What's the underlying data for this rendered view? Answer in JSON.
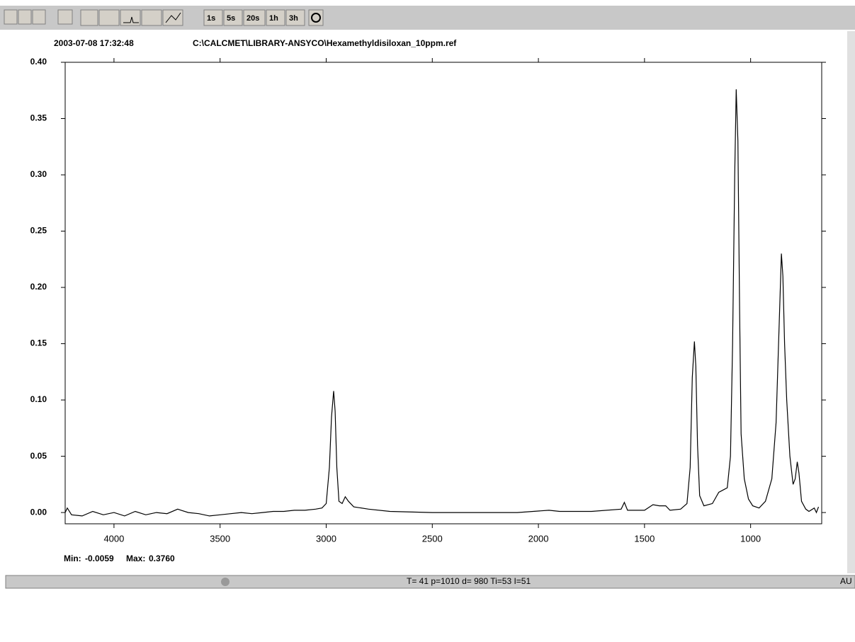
{
  "toolbar": {
    "buttons": [
      "1s",
      "5s",
      "20s",
      "1h",
      "3h"
    ]
  },
  "header": {
    "timestamp": "2003-07-08 17:32:48",
    "file": "C:\\CALCMET\\LIBRARY-ANSYCO\\Hexamethyldisiloxan_10ppm.ref"
  },
  "chart_data": {
    "type": "line",
    "color": "#000000",
    "x": [
      4230,
      4220,
      4200,
      4150,
      4100,
      4050,
      4000,
      3950,
      3900,
      3850,
      3800,
      3750,
      3700,
      3650,
      3600,
      3550,
      3500,
      3450,
      3400,
      3350,
      3300,
      3250,
      3200,
      3150,
      3100,
      3050,
      3020,
      3000,
      2985,
      2975,
      2965,
      2958,
      2950,
      2940,
      2925,
      2910,
      2895,
      2870,
      2800,
      2700,
      2500,
      2300,
      2100,
      1950,
      1900,
      1750,
      1610,
      1595,
      1580,
      1500,
      1460,
      1430,
      1400,
      1380,
      1330,
      1300,
      1285,
      1275,
      1265,
      1258,
      1250,
      1240,
      1220,
      1180,
      1150,
      1130,
      1110,
      1095,
      1085,
      1075,
      1068,
      1060,
      1052,
      1045,
      1030,
      1010,
      990,
      960,
      930,
      900,
      880,
      865,
      855,
      848,
      840,
      830,
      815,
      800,
      790,
      780,
      772,
      760,
      740,
      725,
      700,
      690,
      680
    ],
    "values": [
      0.0,
      0.004,
      -0.002,
      -0.003,
      0.001,
      -0.002,
      0.0,
      -0.003,
      0.001,
      -0.002,
      0.0,
      -0.001,
      0.003,
      0.0,
      -0.001,
      -0.003,
      -0.002,
      -0.001,
      0.0,
      -0.001,
      0.0,
      0.001,
      0.001,
      0.002,
      0.002,
      0.003,
      0.004,
      0.008,
      0.04,
      0.085,
      0.108,
      0.09,
      0.04,
      0.01,
      0.008,
      0.014,
      0.01,
      0.005,
      0.003,
      0.001,
      0.0,
      0.0,
      0.0,
      0.002,
      0.001,
      0.001,
      0.003,
      0.009,
      0.002,
      0.002,
      0.007,
      0.006,
      0.006,
      0.002,
      0.003,
      0.008,
      0.04,
      0.12,
      0.152,
      0.13,
      0.06,
      0.015,
      0.006,
      0.008,
      0.018,
      0.02,
      0.022,
      0.05,
      0.15,
      0.3,
      0.376,
      0.33,
      0.18,
      0.07,
      0.03,
      0.012,
      0.006,
      0.004,
      0.01,
      0.03,
      0.08,
      0.17,
      0.23,
      0.21,
      0.15,
      0.1,
      0.05,
      0.025,
      0.03,
      0.045,
      0.035,
      0.01,
      0.003,
      0.001,
      0.004,
      0.0,
      0.005
    ],
    "xlim": [
      4230,
      665
    ],
    "xticks": [
      4000,
      3500,
      3000,
      2500,
      2000,
      1500,
      1000
    ],
    "ylim": [
      -0.01,
      0.4
    ],
    "yticks": [
      {
        "value": 0.0,
        "label": "0.00"
      },
      0.05,
      {
        "value": 0.1,
        "label": "0.10"
      },
      0.15,
      {
        "value": 0.2,
        "label": "0.20"
      },
      0.25,
      {
        "value": 0.3,
        "label": "0.30"
      },
      0.35,
      {
        "value": 0.4,
        "label": "0.40"
      }
    ]
  },
  "stats": {
    "min_label": "Min:",
    "min": "-0.0059",
    "max_label": "Max:",
    "max": "0.3760"
  },
  "status": {
    "readings": "T= 41  p=1010  d= 980  Ti=53  I=51",
    "mode": "AU"
  }
}
